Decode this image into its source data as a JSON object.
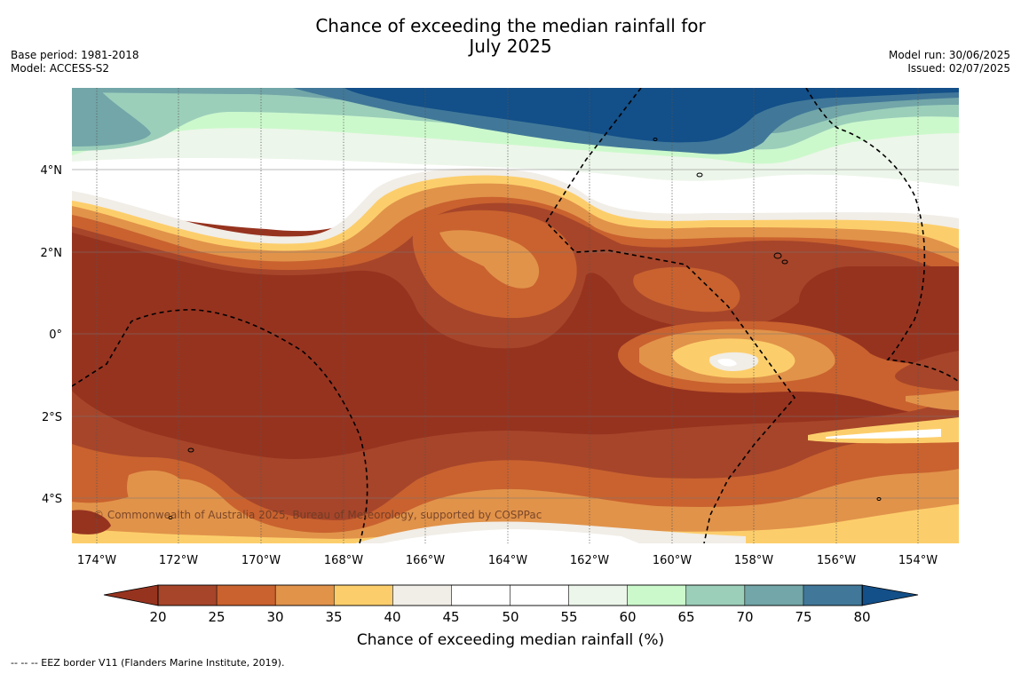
{
  "title": {
    "line1": "Chance of exceeding the median rainfall for",
    "line2": "July 2025"
  },
  "meta_left": {
    "base_period": "Base period: 1981-2018",
    "model": "Model: ACCESS-S2"
  },
  "meta_right": {
    "model_run": "Model run: 30/06/2025",
    "issued": "Issued: 02/07/2025"
  },
  "map": {
    "lat_labels": [
      "4°N",
      "2°N",
      "0°",
      "2°S",
      "4°S"
    ],
    "lon_labels": [
      "174°W",
      "172°W",
      "170°W",
      "168°W",
      "166°W",
      "164°W",
      "162°W",
      "160°W",
      "158°W",
      "156°W",
      "154°W"
    ],
    "copyright": "© Commonwealth of Australia 2025, Bureau of Meteorology, supported by COSPPac"
  },
  "colorbar": {
    "ticks": [
      "20",
      "25",
      "30",
      "35",
      "40",
      "45",
      "50",
      "55",
      "60",
      "65",
      "70",
      "75",
      "80"
    ],
    "colors": [
      "#a6452a",
      "#c9622f",
      "#e1934a",
      "#fcce6b",
      "#f1ede7",
      "#ffffff",
      "#ffffff",
      "#edf6ea",
      "#ccf9cc",
      "#9ccfba",
      "#72a6a8",
      "#417899"
    ],
    "under_color": "#96331f",
    "over_color": "#134f88",
    "title": "Chance of exceeding median rainfall (%)"
  },
  "footnote": "--  --  -- EEZ border V11 (Flanders Marine Institute, 2019)."
}
